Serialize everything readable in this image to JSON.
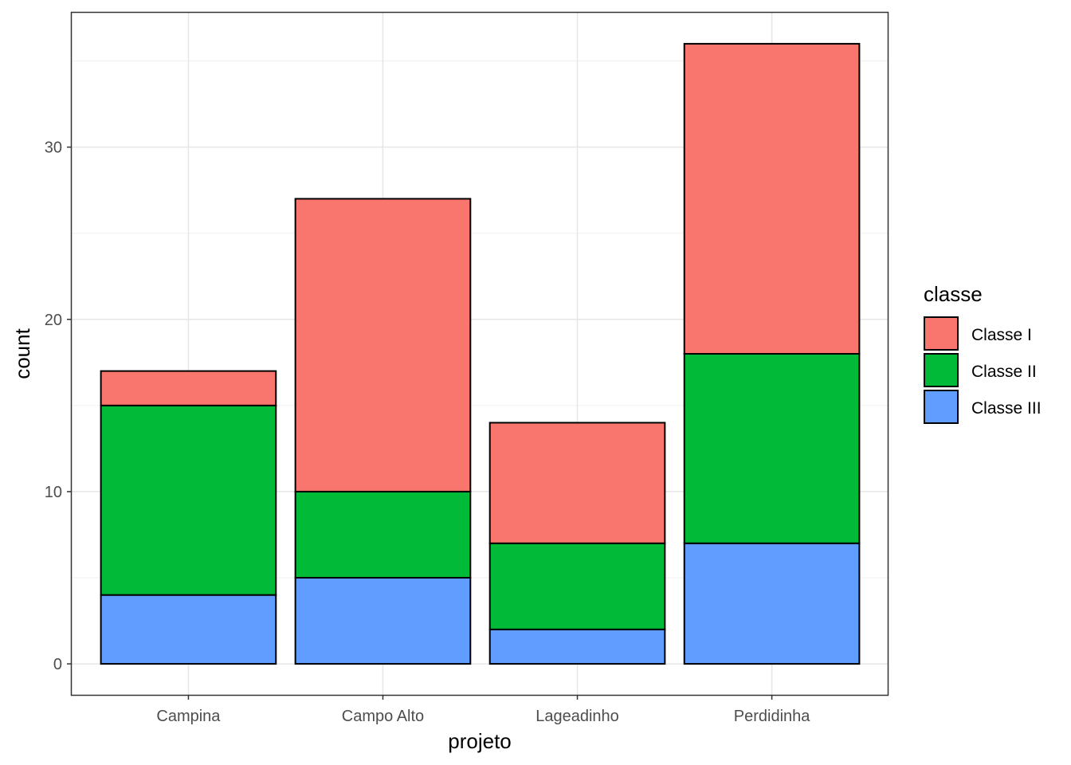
{
  "chart_data": {
    "type": "bar",
    "stacked": true,
    "categories": [
      "Campina",
      "Campo Alto",
      "Lageadinho",
      "Perdidinha"
    ],
    "series": [
      {
        "name": "Classe III",
        "values": [
          4,
          5,
          2,
          7
        ],
        "color": "#619CFF"
      },
      {
        "name": "Classe II",
        "values": [
          11,
          5,
          5,
          11
        ],
        "color": "#00BA38"
      },
      {
        "name": "Classe I",
        "values": [
          2,
          17,
          7,
          18
        ],
        "color": "#F8766D"
      }
    ],
    "title": "",
    "xlabel": "projeto",
    "ylabel": "count",
    "ylim": [
      -1.8,
      37.8
    ],
    "yticks": [
      0,
      10,
      20,
      30
    ],
    "ytick_labels": [
      "0",
      "10",
      "20",
      "30"
    ],
    "grid": true,
    "legend": {
      "title": "classe",
      "position": "right",
      "entries": [
        {
          "label": "Classe I",
          "color": "#F8766D"
        },
        {
          "label": "Classe II",
          "color": "#00BA38"
        },
        {
          "label": "Classe III",
          "color": "#619CFF"
        }
      ]
    }
  }
}
